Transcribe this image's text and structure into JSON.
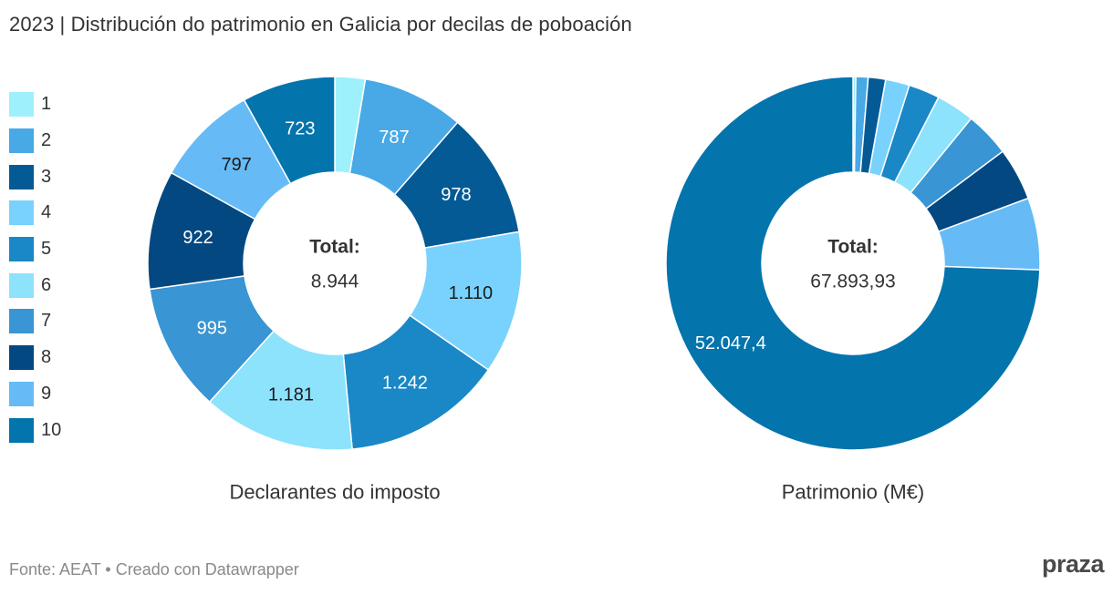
{
  "page": {
    "title": "2023 | Distribución do patrimonio en Galicia por decilas de poboación",
    "source": "Fonte: AEAT • Creado con Datawrapper",
    "logo_text": "praza"
  },
  "legend": {
    "placement": "left",
    "items": [
      {
        "label": "1",
        "color": "#9ff0fd"
      },
      {
        "label": "2",
        "color": "#48a9e6"
      },
      {
        "label": "3",
        "color": "#045a94"
      },
      {
        "label": "4",
        "color": "#78d2fd"
      },
      {
        "label": "5",
        "color": "#1a87c6"
      },
      {
        "label": "6",
        "color": "#8de2fc"
      },
      {
        "label": "7",
        "color": "#3995d3"
      },
      {
        "label": "8",
        "color": "#034881"
      },
      {
        "label": "9",
        "color": "#66bbf6"
      },
      {
        "label": "10",
        "color": "#0474ad"
      }
    ]
  },
  "chart_data": [
    {
      "type": "donut",
      "title": "Declarantes do imposto",
      "center_label": "Total:",
      "center_value": "8.944",
      "categories": [
        "1",
        "2",
        "3",
        "4",
        "5",
        "6",
        "7",
        "8",
        "9",
        "10"
      ],
      "values": [
        235,
        787,
        978,
        1110,
        1242,
        1181,
        995,
        922,
        797,
        723
      ],
      "labels": [
        "",
        "787",
        "978",
        "1.110",
        "1.242",
        "1.181",
        "995",
        "922",
        "797",
        "723"
      ],
      "label_dark": [
        false,
        false,
        false,
        true,
        false,
        true,
        false,
        false,
        true,
        false
      ]
    },
    {
      "type": "donut",
      "title": "Patrimonio (M€)",
      "center_label": "Total:",
      "center_value": "67.893,93",
      "categories": [
        "1",
        "2",
        "3",
        "4",
        "5",
        "6",
        "7",
        "8",
        "9",
        "10"
      ],
      "values": [
        170,
        740,
        1050,
        1450,
        1880,
        2320,
        2720,
        3190,
        4350,
        52047.4
      ],
      "labels": [
        "",
        "",
        "",
        "",
        "",
        "",
        "",
        "",
        "",
        "52.047,4"
      ],
      "label_dark": [
        false,
        false,
        false,
        false,
        false,
        false,
        false,
        false,
        false,
        false
      ]
    }
  ]
}
